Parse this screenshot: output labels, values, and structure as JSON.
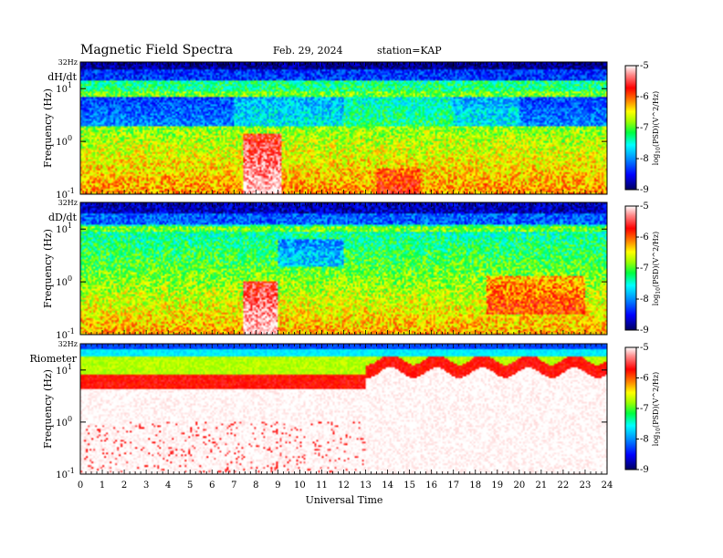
{
  "header": {
    "title": "Magnetic Field Spectra",
    "date": "Feb. 29, 2024",
    "station": "station=KAP"
  },
  "chart_data": {
    "type": "heatmap",
    "xlabel": "Universal Time",
    "x_ticks": [
      "0",
      "1",
      "2",
      "3",
      "4",
      "5",
      "6",
      "7",
      "8",
      "9",
      "10",
      "11",
      "12",
      "13",
      "14",
      "15",
      "16",
      "17",
      "18",
      "19",
      "20",
      "21",
      "22",
      "23",
      "24"
    ],
    "xlim": [
      0,
      24
    ],
    "colorbar": {
      "label": "log10(PSD)(V^2/Hz)",
      "label_main": "log",
      "label_sub": "10",
      "label_rest": "(PSD)(V^2/Hz)",
      "ticks": [
        "-5",
        "-6",
        "-7",
        "-8",
        "-9"
      ],
      "range": [
        -9,
        -5
      ],
      "colormap": [
        "#000080",
        "#0000ff",
        "#00a0ff",
        "#00ffff",
        "#00ff60",
        "#80ff00",
        "#ffff00",
        "#ff8000",
        "#ff0000",
        "#ff8080",
        "#ffffff"
      ]
    },
    "panels": [
      {
        "label": "dH/dt",
        "ylabel": "Frequency (Hz)",
        "top_label": "32Hz",
        "y_ticks": [
          {
            "base": "10",
            "exp": "1"
          },
          {
            "base": "10",
            "exp": "0"
          },
          {
            "base": "10",
            "exp": "-1"
          }
        ],
        "ylim_log10": [
          -1,
          1.505
        ],
        "features": "blue band near 3 Hz on day side; green/yellow broadband; strong red enhancement 7.5-9 UT below 1 Hz"
      },
      {
        "label": "dD/dt",
        "ylabel": "Frequency (Hz)",
        "top_label": "32Hz",
        "y_ticks": [
          {
            "base": "10",
            "exp": "1"
          },
          {
            "base": "10",
            "exp": "0"
          },
          {
            "base": "10",
            "exp": "-1"
          }
        ],
        "ylim_log10": [
          -1,
          1.505
        ],
        "features": "dark blue above 20 Hz; cyan dip 9-12 UT near 3 Hz; red enhancement 7.5-9 UT; orange 19-23 UT"
      },
      {
        "label": "Riometer",
        "ylabel": "Frequency (Hz)",
        "top_label": "32Hz",
        "y_ticks": [
          {
            "base": "10",
            "exp": "1"
          },
          {
            "base": "10",
            "exp": "0"
          },
          {
            "base": "10",
            "exp": "-1"
          }
        ],
        "ylim_log10": [
          -1,
          1.505
        ],
        "features": "blue/cyan top band, red band near 10 Hz, white below; red speckle 0-12.5 UT below 1 Hz"
      }
    ]
  }
}
